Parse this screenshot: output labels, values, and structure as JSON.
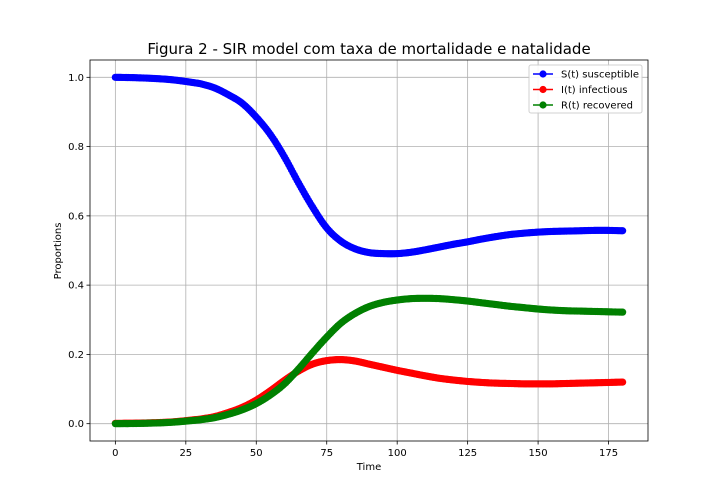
{
  "chart_data": {
    "type": "line",
    "title": "Figura 2 - SIR model com taxa de mortalidade e natalidade",
    "xlabel": "Time",
    "ylabel": "Proportions",
    "xlim": [
      -9,
      189
    ],
    "ylim": [
      -0.05,
      1.05
    ],
    "xticks": [
      0,
      25,
      50,
      75,
      100,
      125,
      150,
      175
    ],
    "yticks": [
      0.0,
      0.2,
      0.4,
      0.6,
      0.8,
      1.0
    ],
    "xtick_labels": [
      "0",
      "25",
      "50",
      "75",
      "100",
      "125",
      "150",
      "175"
    ],
    "ytick_labels": [
      "0.0",
      "0.2",
      "0.4",
      "0.6",
      "0.8",
      "1.0"
    ],
    "grid": true,
    "legend_position": "top-right",
    "x": [
      0,
      10,
      20,
      30,
      35,
      40,
      45,
      50,
      55,
      60,
      65,
      70,
      75,
      80,
      85,
      90,
      95,
      100,
      105,
      110,
      115,
      120,
      125,
      130,
      135,
      140,
      145,
      150,
      155,
      160,
      165,
      170,
      175,
      180
    ],
    "series": [
      {
        "name": "S(t) susceptible",
        "color": "#0000ff",
        "values": [
          1.0,
          0.998,
          0.993,
          0.982,
          0.97,
          0.95,
          0.925,
          0.885,
          0.835,
          0.77,
          0.695,
          0.625,
          0.565,
          0.527,
          0.505,
          0.494,
          0.491,
          0.491,
          0.495,
          0.502,
          0.51,
          0.518,
          0.525,
          0.533,
          0.54,
          0.546,
          0.55,
          0.553,
          0.555,
          0.556,
          0.557,
          0.558,
          0.558,
          0.557
        ]
      },
      {
        "name": "I(t) infectious",
        "color": "#ff0000",
        "values": [
          0.001,
          0.002,
          0.005,
          0.013,
          0.02,
          0.032,
          0.047,
          0.068,
          0.095,
          0.125,
          0.152,
          0.172,
          0.182,
          0.185,
          0.181,
          0.172,
          0.163,
          0.154,
          0.146,
          0.138,
          0.131,
          0.126,
          0.122,
          0.119,
          0.117,
          0.116,
          0.115,
          0.115,
          0.115,
          0.116,
          0.117,
          0.118,
          0.119,
          0.12
        ]
      },
      {
        "name": "R(t) recovered",
        "color": "#008000",
        "values": [
          0.0,
          0.001,
          0.004,
          0.011,
          0.017,
          0.027,
          0.04,
          0.058,
          0.083,
          0.115,
          0.158,
          0.205,
          0.25,
          0.29,
          0.318,
          0.338,
          0.35,
          0.357,
          0.361,
          0.362,
          0.361,
          0.358,
          0.354,
          0.349,
          0.344,
          0.339,
          0.335,
          0.331,
          0.328,
          0.326,
          0.325,
          0.324,
          0.323,
          0.322
        ]
      }
    ]
  }
}
